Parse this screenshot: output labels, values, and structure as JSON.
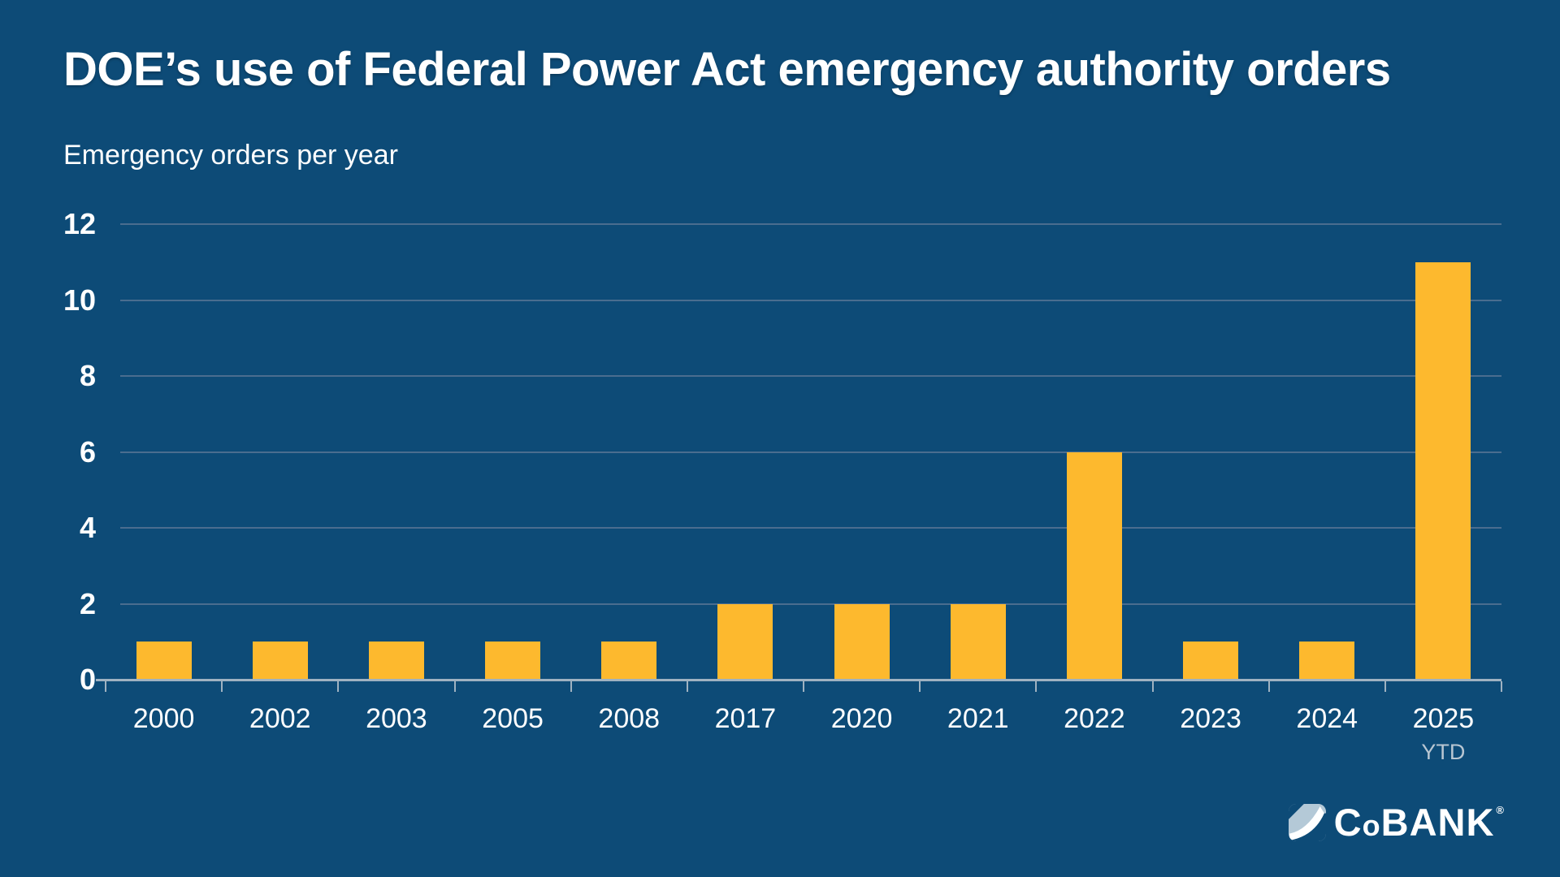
{
  "chart_data": {
    "type": "bar",
    "title": "DOE’s use of Federal Power Act emergency authority orders",
    "subtitle": "Emergency orders per year",
    "categories": [
      "2000",
      "2002",
      "2003",
      "2005",
      "2008",
      "2017",
      "2020",
      "2021",
      "2022",
      "2023",
      "2024",
      "2025"
    ],
    "category_sublabels": [
      "",
      "",
      "",
      "",
      "",
      "",
      "",
      "",
      "",
      "",
      "",
      "YTD"
    ],
    "values": [
      1,
      1,
      1,
      1,
      1,
      2,
      2,
      2,
      6,
      1,
      1,
      11
    ],
    "yticks": [
      0,
      2,
      4,
      6,
      8,
      10,
      12
    ],
    "ylim": [
      0,
      12
    ],
    "xlabel": "",
    "ylabel": "Emergency orders per year",
    "grid": "horizontal",
    "legend": "none",
    "colors": {
      "background": "#0d4b77",
      "bar": "#fdb92e",
      "gridline": "#4a6d8f",
      "axis": "#9fb2c1",
      "text": "#ffffff",
      "muted_text": "#b8c6d2"
    }
  },
  "footer": {
    "logo": {
      "text": "CoBANK",
      "parts": {
        "c": "C",
        "o": "o",
        "bank": "BANK"
      },
      "reg": "®",
      "icon_light_color": "#b4c9d7"
    }
  }
}
